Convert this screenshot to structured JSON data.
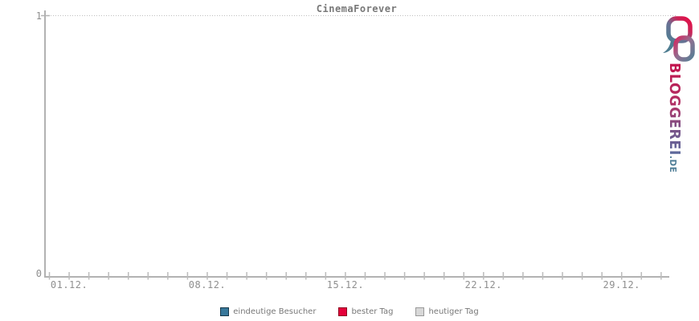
{
  "logo": {
    "brand": "BLOGGEREI",
    "tld": ".DE"
  },
  "chart_data": {
    "type": "bar",
    "title": "CinemaForever",
    "x_axis": {
      "tick_count": 32,
      "labels": [
        {
          "text": "01.12.",
          "day": 1
        },
        {
          "text": "08.12.",
          "day": 8
        },
        {
          "text": "15.12.",
          "day": 15
        },
        {
          "text": "22.12.",
          "day": 22
        },
        {
          "text": "29.12.",
          "day": 29
        }
      ]
    },
    "y_axis": {
      "min": 0,
      "max": 1,
      "tick_labels": [
        "0",
        "1"
      ]
    },
    "grid": {
      "dotted_line_at_y_max": true
    },
    "series": [
      {
        "name": "eindeutige Besucher",
        "fill": "#38789B",
        "border": "#16384A",
        "values": []
      },
      {
        "name": "bester Tag",
        "fill": "#E4003A",
        "border": "#8E0020",
        "values": []
      },
      {
        "name": "heutiger Tag",
        "fill": "#D8D8D8",
        "border": "#999999",
        "values": []
      }
    ]
  }
}
